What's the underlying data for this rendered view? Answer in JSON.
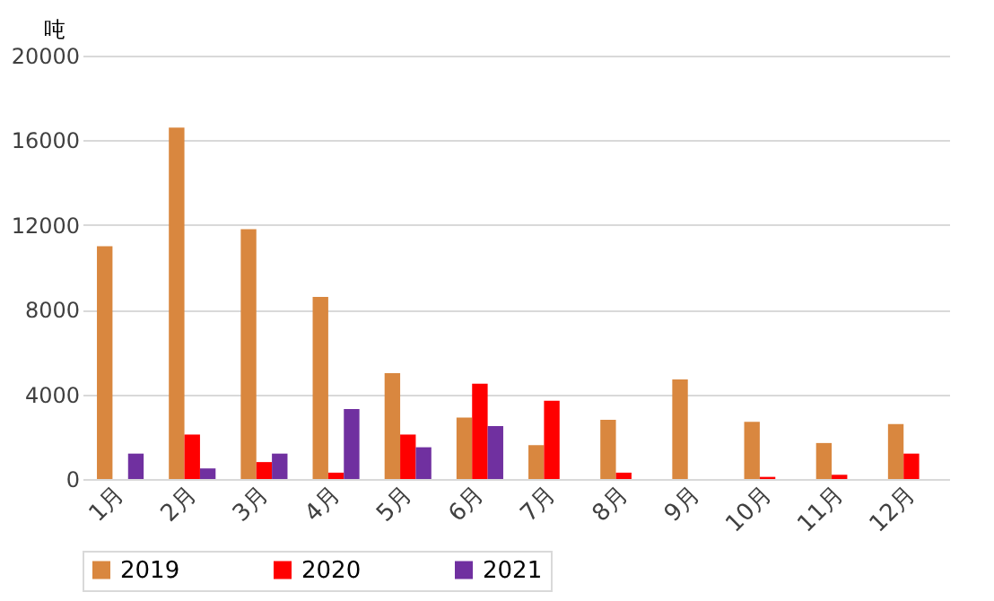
{
  "chart_data": {
    "type": "bar",
    "ylabel": "吨",
    "categories": [
      "1月",
      "2月",
      "3月",
      "4月",
      "5月",
      "6月",
      "7月",
      "8月",
      "9月",
      "10月",
      "11月",
      "12月"
    ],
    "series": [
      {
        "name": "2019",
        "color": "#d9873f",
        "values": [
          11000,
          16600,
          11800,
          8600,
          5000,
          2900,
          1600,
          2800,
          4700,
          2700,
          1700,
          2600
        ]
      },
      {
        "name": "2020",
        "color": "#ff0000",
        "values": [
          null,
          2100,
          800,
          300,
          2100,
          4500,
          3700,
          300,
          null,
          100,
          200,
          1200
        ]
      },
      {
        "name": "2021",
        "color": "#7030a0",
        "values": [
          1200,
          500,
          1200,
          3300,
          1500,
          2500,
          null,
          null,
          null,
          null,
          null,
          null
        ]
      }
    ],
    "ylim": [
      0,
      20000
    ],
    "yticks": [
      0,
      4000,
      8000,
      12000,
      16000,
      20000
    ],
    "grid": "y",
    "legend": "bottom"
  }
}
